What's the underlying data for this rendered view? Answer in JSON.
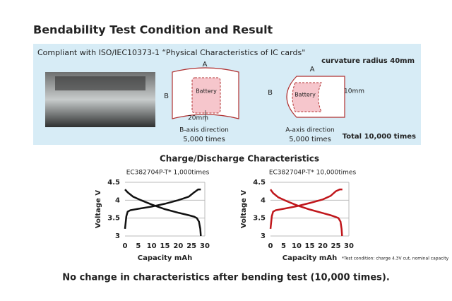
{
  "header": {
    "title": "Bendability Test Condition and Result"
  },
  "test_panel": {
    "standard": "Compliant with ISO/IEC10373-1 “Physical Characteristics of IC cards\"",
    "curvature": "curvature radius 40mm",
    "b_axis": {
      "label_a": "A",
      "label_b": "B",
      "battery": "Battery",
      "dimension": "20mm",
      "direction": "B-axis direction",
      "count": "5,000 times"
    },
    "a_axis": {
      "label_a": "A",
      "label_b": "B",
      "battery": "Battery",
      "dimension": "10mm",
      "direction": "A-axis direction",
      "count": "5,000 times"
    },
    "total": "Total 10,000 times"
  },
  "section_title": "Charge/Discharge Characteristics",
  "chart_data": [
    {
      "type": "line",
      "title": "EC382704P-T* 1,000times",
      "x_label": "Capacity mAh",
      "y_label": "Voltage V",
      "xlim": [
        0,
        30
      ],
      "xticks": [
        0,
        5,
        10,
        15,
        20,
        25,
        30
      ],
      "ylim": [
        3,
        4.5
      ],
      "yticks": [
        3,
        3.5,
        4,
        4.5
      ],
      "grid": true,
      "series": [
        {
          "color": "#111111",
          "x": [
            0,
            0.5,
            1,
            2,
            5,
            10,
            15,
            20,
            24,
            26,
            27.5,
            28.5
          ],
          "values": [
            3.2,
            3.55,
            3.68,
            3.72,
            3.76,
            3.82,
            3.9,
            4.0,
            4.1,
            4.22,
            4.3,
            4.3
          ]
        },
        {
          "color": "#111111",
          "x": [
            0,
            1,
            3,
            6,
            10,
            15,
            20,
            24,
            26,
            27,
            27.8,
            28.3,
            28.5
          ],
          "values": [
            4.3,
            4.22,
            4.1,
            4.0,
            3.88,
            3.75,
            3.65,
            3.58,
            3.54,
            3.5,
            3.4,
            3.2,
            3.0
          ]
        }
      ]
    },
    {
      "type": "line",
      "title": "EC382704P-T* 10,000times",
      "x_label": "Capacity mAh",
      "y_label": "Voltage V",
      "xlim": [
        0,
        30
      ],
      "xticks": [
        0,
        5,
        10,
        15,
        20,
        25,
        30
      ],
      "ylim": [
        3,
        4.5
      ],
      "yticks": [
        3,
        3.5,
        4,
        4.5
      ],
      "grid": true,
      "series": [
        {
          "color": "#c0161b",
          "x": [
            0,
            0.5,
            1,
            2,
            5,
            10,
            15,
            20,
            23,
            25,
            26.5,
            27.5
          ],
          "values": [
            3.2,
            3.55,
            3.68,
            3.72,
            3.76,
            3.83,
            3.92,
            4.02,
            4.12,
            4.25,
            4.3,
            4.3
          ]
        },
        {
          "color": "#c0161b",
          "x": [
            0,
            1,
            3,
            6,
            10,
            15,
            20,
            23,
            25,
            26,
            26.8,
            27.2,
            27.4
          ],
          "values": [
            4.3,
            4.2,
            4.08,
            3.98,
            3.86,
            3.74,
            3.64,
            3.58,
            3.53,
            3.5,
            3.4,
            3.2,
            3.0
          ]
        }
      ]
    }
  ],
  "footnote": "*Test condition: charge 4.3V cut, nominal capacity",
  "conclusion": "No change in characteristics after bending test (10,000 times)."
}
